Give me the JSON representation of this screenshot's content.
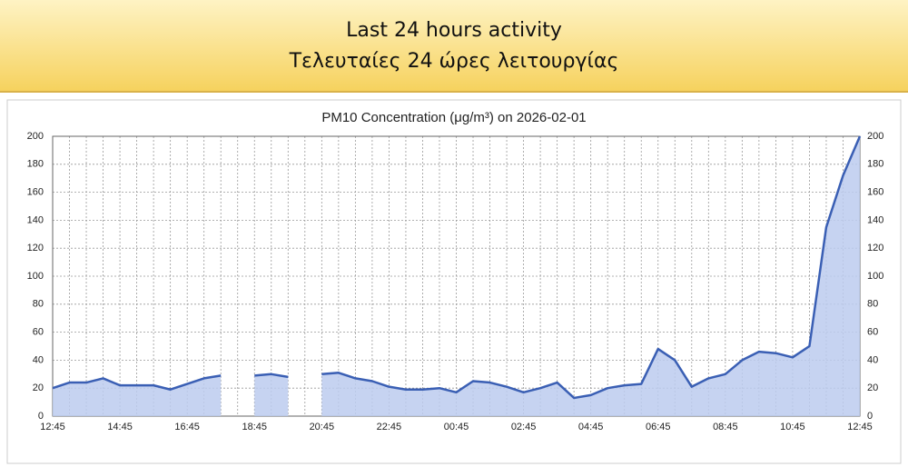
{
  "header": {
    "lines": [
      "Last 24 hours activity",
      "Τελευταίες 24 ώρες λειτουργίας"
    ]
  },
  "chart_data": {
    "type": "area",
    "title": "PM10 Concentration (μg/m³) on 2026-02-01",
    "categories": [
      "12:45",
      null,
      null,
      null,
      "14:45",
      null,
      null,
      null,
      "16:45",
      null,
      null,
      null,
      "18:45",
      null,
      null,
      null,
      "20:45",
      null,
      null,
      null,
      "22:45",
      null,
      null,
      null,
      "00:45",
      null,
      null,
      null,
      "02:45",
      null,
      null,
      null,
      "04:45",
      null,
      null,
      null,
      "06:45",
      null,
      null,
      null,
      "08:45",
      null,
      null,
      null,
      "10:45",
      null,
      null,
      null,
      "12:45"
    ],
    "series": [
      {
        "name": "PM10",
        "color": "#3a5fb4",
        "values": [
          20,
          24,
          24,
          27,
          22,
          22,
          22,
          19,
          23,
          27,
          29,
          null,
          29,
          30,
          28,
          null,
          30,
          31,
          27,
          25,
          21,
          19,
          19,
          20,
          17,
          25,
          24,
          21,
          17,
          20,
          24,
          13,
          15,
          20,
          22,
          23,
          48,
          40,
          21,
          27,
          30,
          40,
          46,
          45,
          42,
          50,
          135,
          172,
          200
        ]
      }
    ],
    "ylim": [
      0,
      200
    ],
    "yticks": [
      0,
      20,
      40,
      60,
      80,
      100,
      120,
      140,
      160,
      180,
      200
    ],
    "y2lim": [
      0,
      200
    ],
    "y2ticks": [
      0,
      20,
      40,
      60,
      80,
      100,
      120,
      140,
      160,
      180,
      200
    ],
    "grid": true,
    "fill_color": "#bccbef"
  }
}
